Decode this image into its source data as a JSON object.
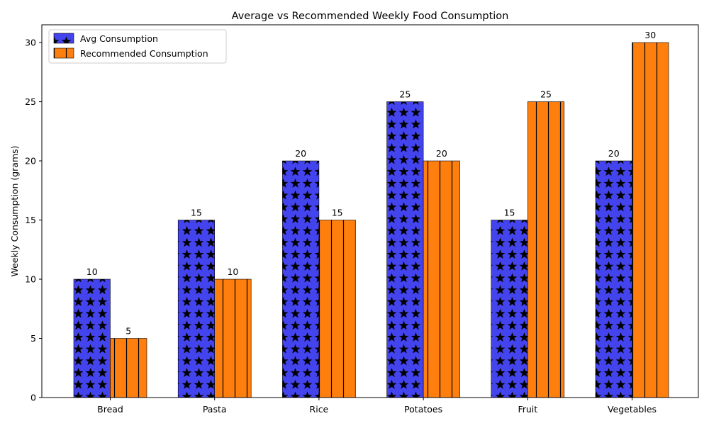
{
  "chart_data": {
    "type": "bar",
    "title": "Average vs Recommended Weekly Food Consumption",
    "xlabel": "",
    "ylabel": "Weekly Consumption (grams)",
    "categories": [
      "Bread",
      "Pasta",
      "Rice",
      "Potatoes",
      "Fruit",
      "Vegetables"
    ],
    "series": [
      {
        "name": "Avg Consumption",
        "values": [
          10,
          15,
          20,
          25,
          15,
          20
        ],
        "color": "#4444ee",
        "hatch": "stars"
      },
      {
        "name": "Recommended Consumption",
        "values": [
          5,
          10,
          15,
          20,
          25,
          30
        ],
        "color": "#ff7f0e",
        "hatch": "vertical-lines"
      }
    ],
    "yticks": [
      "0",
      "5",
      "10",
      "15",
      "20",
      "25",
      "30"
    ],
    "ylim": [
      0,
      31.5
    ],
    "grid": false,
    "legend": "top-left",
    "data_labels": true
  }
}
